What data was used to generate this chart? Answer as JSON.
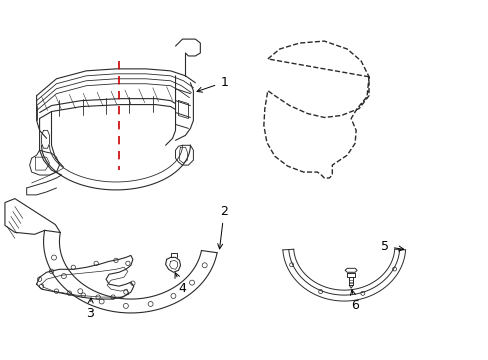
{
  "background_color": "#ffffff",
  "line_color": "#2a2a2a",
  "label_color": "#000000",
  "red_dash_color": "#cc0000",
  "fig_width": 4.89,
  "fig_height": 3.6,
  "dpi": 100
}
